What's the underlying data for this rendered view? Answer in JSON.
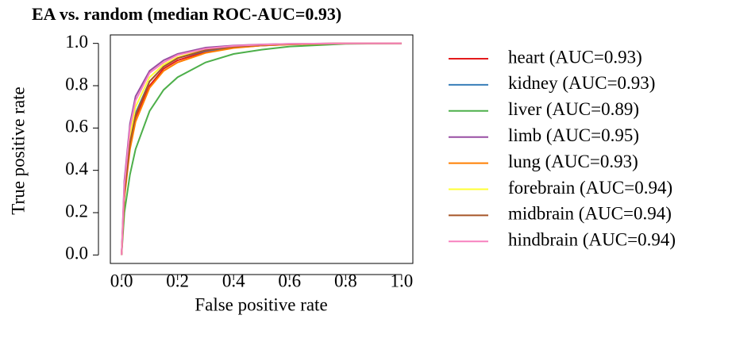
{
  "chart_data": {
    "type": "line",
    "title": "EA vs. random (median ROC-AUC=0.93)",
    "x_label": "False positive rate",
    "y_label": "True positive rate",
    "xlim": [
      -0.04,
      1.04
    ],
    "ylim": [
      -0.04,
      1.04
    ],
    "xticks": [
      {
        "value": 0,
        "label": "0.0"
      },
      {
        "value": 0.2,
        "label": "0.2"
      },
      {
        "value": 0.4,
        "label": "0.4"
      },
      {
        "value": 0.6,
        "label": "0.6"
      },
      {
        "value": 0.8,
        "label": "0.8"
      },
      {
        "value": 1,
        "label": "1.0"
      }
    ],
    "yticks": [
      {
        "value": 0,
        "label": "0.0"
      },
      {
        "value": 0.2,
        "label": "0.2"
      },
      {
        "value": 0.4,
        "label": "0.4"
      },
      {
        "value": 0.6,
        "label": "0.6"
      },
      {
        "value": 0.8,
        "label": "0.8"
      },
      {
        "value": 1,
        "label": "1.0"
      }
    ],
    "legend": "right",
    "x": [
      0,
      0.01,
      0.03,
      0.05,
      0.1,
      0.15,
      0.2,
      0.3,
      0.4,
      0.5,
      0.6,
      0.8,
      1.0
    ],
    "series": [
      {
        "name": "heart (AUC=0.93)",
        "color": "#E41A1C",
        "values": [
          0,
          0.28,
          0.52,
          0.65,
          0.8,
          0.88,
          0.92,
          0.96,
          0.98,
          0.99,
          0.995,
          1,
          1
        ]
      },
      {
        "name": "kidney (AUC=0.93)",
        "color": "#377EB8",
        "values": [
          0,
          0.3,
          0.54,
          0.67,
          0.82,
          0.89,
          0.93,
          0.965,
          0.982,
          0.99,
          0.996,
          1,
          1
        ]
      },
      {
        "name": "liver (AUC=0.89)",
        "color": "#4DAF4A",
        "values": [
          0,
          0.2,
          0.38,
          0.5,
          0.68,
          0.78,
          0.84,
          0.91,
          0.95,
          0.97,
          0.985,
          0.998,
          1
        ]
      },
      {
        "name": "limb (AUC=0.95)",
        "color": "#984EA3",
        "values": [
          0,
          0.35,
          0.62,
          0.75,
          0.87,
          0.92,
          0.95,
          0.98,
          0.99,
          0.995,
          0.998,
          1,
          1
        ]
      },
      {
        "name": "lung (AUC=0.93)",
        "color": "#FF7F00",
        "values": [
          0,
          0.27,
          0.5,
          0.63,
          0.79,
          0.87,
          0.91,
          0.955,
          0.978,
          0.99,
          0.995,
          1,
          1
        ]
      },
      {
        "name": "forebrain (AUC=0.94)",
        "color": "#FFFF33",
        "values": [
          0,
          0.3,
          0.56,
          0.7,
          0.84,
          0.9,
          0.935,
          0.97,
          0.985,
          0.993,
          0.997,
          1,
          1
        ]
      },
      {
        "name": "midbrain (AUC=0.94)",
        "color": "#A65628",
        "values": [
          0,
          0.29,
          0.53,
          0.66,
          0.82,
          0.89,
          0.93,
          0.968,
          0.984,
          0.992,
          0.997,
          1,
          1
        ]
      },
      {
        "name": "hindbrain (AUC=0.94)",
        "color": "#F781BF",
        "values": [
          0,
          0.33,
          0.6,
          0.73,
          0.86,
          0.91,
          0.945,
          0.975,
          0.988,
          0.994,
          0.998,
          1,
          1
        ]
      }
    ]
  }
}
